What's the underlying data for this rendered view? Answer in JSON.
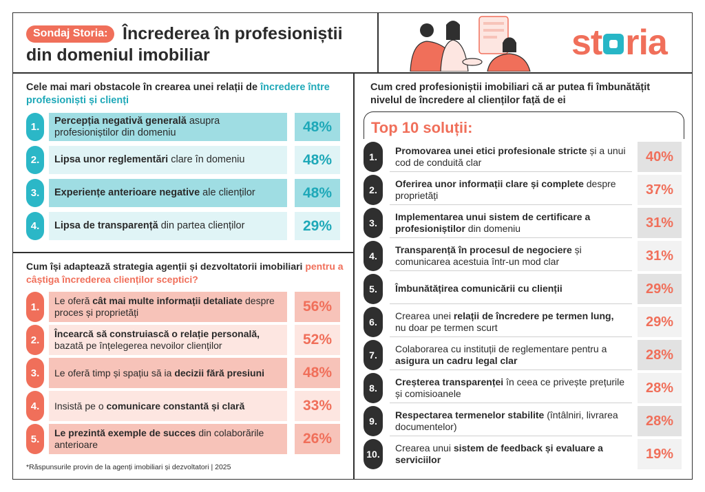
{
  "header": {
    "badge": "Sondaj Storia:",
    "title_line1": "Încrederea în profesioniștii",
    "title_line2": "din domeniul imobiliar",
    "logo": {
      "pre": "st",
      "post": "ria"
    }
  },
  "colors": {
    "teal": "#2bb7c7",
    "coral": "#f06f5a",
    "dark": "#2f2f2f"
  },
  "section1": {
    "heading_pre": "Cele mai mari obstacole în crearea unei relații de ",
    "heading_hl": "încredere între profesioniști și clienți",
    "items": [
      {
        "num": "1.",
        "bold": "Percepția negativă generală",
        "rest": " asupra profesioniștilor din domeniu",
        "pct": "48%"
      },
      {
        "num": "2.",
        "bold": "Lipsa unor reglementări",
        "rest": " clare în domeniu",
        "pct": "48%"
      },
      {
        "num": "3.",
        "bold": "Experiențe anterioare negative",
        "rest": " ale clienților",
        "pct": "48%"
      },
      {
        "num": "4.",
        "bold": "Lipsa de transparență",
        "rest": " din partea clienților",
        "pct": "29%"
      }
    ]
  },
  "section2": {
    "heading_pre": "Cum își adaptează strategia agenții și dezvoltatorii imobiliari ",
    "heading_hl": "pentru a câștiga încrederea clienților sceptici?",
    "items": [
      {
        "num": "1.",
        "pre": "Le oferă ",
        "bold": "cât mai multe informații detaliate",
        "rest": " despre proces și proprietăți",
        "pct": "56%"
      },
      {
        "num": "2.",
        "pre": "",
        "bold": "Încearcă să construiască o relație personală,",
        "rest": " bazată pe înțelegerea nevoilor clienților",
        "pct": "52%"
      },
      {
        "num": "3.",
        "pre": "Le oferă timp și spațiu să ia ",
        "bold": "decizii fără presiuni",
        "rest": "",
        "pct": "48%"
      },
      {
        "num": "4.",
        "pre": "Insistă pe o ",
        "bold": "comunicare constantă și clară",
        "rest": "",
        "pct": "33%"
      },
      {
        "num": "5.",
        "pre": "",
        "bold": "Le prezintă exemple de succes",
        "rest": " din colaborările anterioare",
        "pct": "26%"
      }
    ]
  },
  "footnote": "*Răspunsurile provin de la agenți imobiliari și dezvoltatori | 2025",
  "section3": {
    "heading": "Cum cred profesioniștii imobiliari că ar putea fi îmbunătățit nivelul de încredere al clienților față de ei",
    "top_title": "Top 10 soluții:",
    "items": [
      {
        "num": "1.",
        "pre": "",
        "bold": "Promovarea unei etici profesionale stricte",
        "rest": " și a unui cod de conduită clar",
        "pct": "40%"
      },
      {
        "num": "2.",
        "pre": "",
        "bold": "Oferirea unor informații clare și complete",
        "rest": " despre proprietăți",
        "pct": "37%"
      },
      {
        "num": "3.",
        "pre": "",
        "bold": "Implementarea unui sistem de certificare a profesioniștilor",
        "rest": " din domeniu",
        "pct": "31%"
      },
      {
        "num": "4.",
        "pre": "",
        "bold": "Transparență în procesul de negociere",
        "rest": " și comunicarea acestuia într-un mod clar",
        "pct": "31%"
      },
      {
        "num": "5.",
        "pre": "",
        "bold": "Îmbunătățirea comunicării cu clienții",
        "rest": "",
        "pct": "29%"
      },
      {
        "num": "6.",
        "pre": "Crearea unei ",
        "bold": "relații de încredere pe termen lung,",
        "rest": " nu doar pe termen scurt",
        "pct": "29%"
      },
      {
        "num": "7.",
        "pre": "Colaborarea cu instituții de reglementare pentru a ",
        "bold": "asigura un cadru legal clar",
        "rest": "",
        "pct": "28%"
      },
      {
        "num": "8.",
        "pre": "",
        "bold": "Creșterea transparenței",
        "rest": " în ceea ce privește prețurile și comisioanele",
        "pct": "28%"
      },
      {
        "num": "9.",
        "pre": "",
        "bold": "Respectarea termenelor stabilite",
        "rest": " (întâlniri, livrarea documentelor)",
        "pct": "28%"
      },
      {
        "num": "10.",
        "pre": "Crearea unui ",
        "bold": "sistem de feedback și evaluare a serviciilor",
        "rest": "",
        "pct": "19%"
      }
    ]
  }
}
